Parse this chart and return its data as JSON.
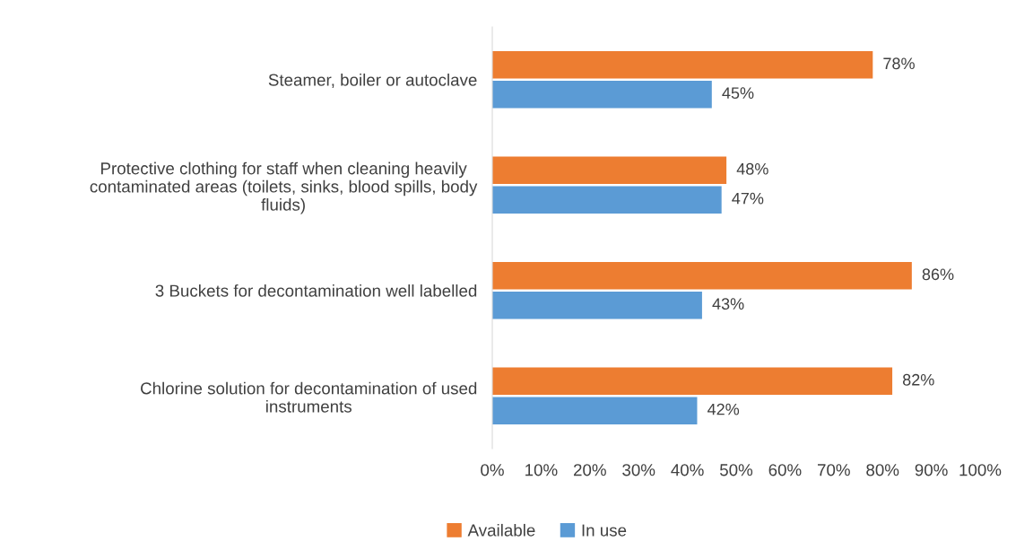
{
  "chart_data": {
    "type": "bar",
    "orientation": "horizontal",
    "categories": [
      "Steamer, boiler or autoclave",
      "Protective clothing for staff when cleaning heavily\ncontaminated areas (toilets, sinks, blood spills, body\nfluids)",
      "3 Buckets for decontamination well labelled",
      "Chlorine solution for decontamination of used\ninstruments"
    ],
    "series": [
      {
        "name": "Available",
        "color": "#ed7d31",
        "values": [
          78,
          48,
          86,
          82
        ],
        "value_labels": [
          "78%",
          "48%",
          "86%",
          "82%"
        ]
      },
      {
        "name": "In use",
        "color": "#5b9bd5",
        "values": [
          45,
          47,
          43,
          42
        ],
        "value_labels": [
          "45%",
          "47%",
          "43%",
          "42%"
        ]
      }
    ],
    "xlim": [
      0,
      100
    ],
    "xticks": [
      {
        "value": 0,
        "label": "0%"
      },
      {
        "value": 10,
        "label": "10%"
      },
      {
        "value": 20,
        "label": "20%"
      },
      {
        "value": 30,
        "label": "30%"
      },
      {
        "value": 40,
        "label": "40%"
      },
      {
        "value": 50,
        "label": "50%"
      },
      {
        "value": 60,
        "label": "60%"
      },
      {
        "value": 70,
        "label": "70%"
      },
      {
        "value": 80,
        "label": "80%"
      },
      {
        "value": 90,
        "label": "90%"
      },
      {
        "value": 100,
        "label": "100%"
      }
    ],
    "grid": false,
    "legend": "bottom"
  }
}
